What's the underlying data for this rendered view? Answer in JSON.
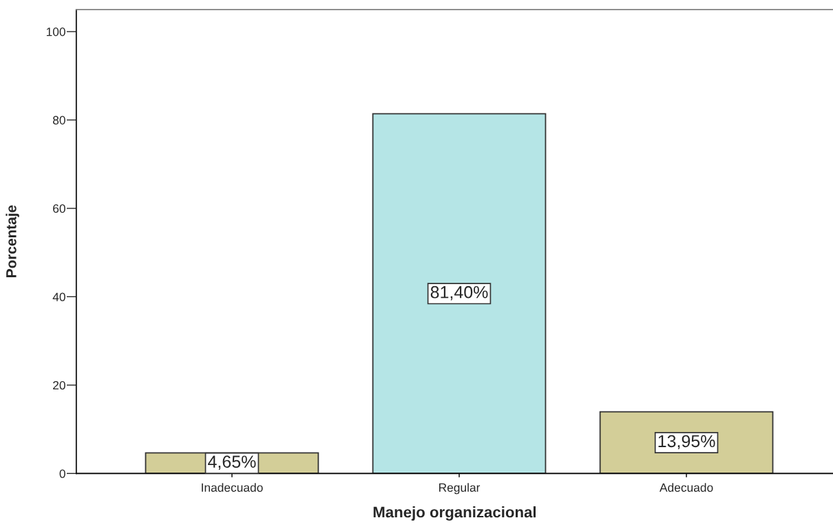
{
  "chart_data": {
    "type": "bar",
    "xlabel": "Manejo organizacional",
    "ylabel": "Porcentaje",
    "categories": [
      "Inadecuado",
      "Regular",
      "Adecuado"
    ],
    "values": [
      4.65,
      81.4,
      13.95
    ],
    "colors": [
      "#d3ce98",
      "#b5e5e6",
      "#d3ce98"
    ],
    "value_labels": [
      "4,65%",
      "81,40%",
      "13,95%"
    ],
    "ylim": [
      0,
      105
    ],
    "yticks": [
      0,
      20,
      40,
      60,
      80,
      100
    ]
  }
}
